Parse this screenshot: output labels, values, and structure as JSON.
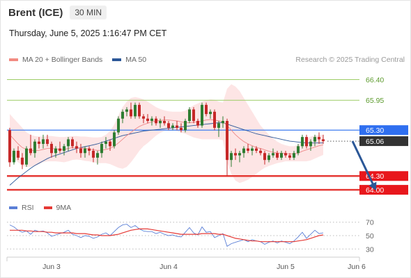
{
  "header": {
    "title": "Brent (ICE)",
    "timeframe": "30 MIN"
  },
  "datetime": "Thursday, June 5, 2025 1:16:47 PM CET",
  "legend": [
    {
      "label": "MA 20 + Bollinger Bands",
      "color": "#f28b82"
    },
    {
      "label": "MA 50",
      "color": "#2b5797"
    }
  ],
  "credit": "Research © 2025 Trading Central",
  "rsi_legend": [
    {
      "label": "RSI",
      "color": "#5b7fd6"
    },
    {
      "label": "9MA",
      "color": "#e53935"
    }
  ],
  "colors": {
    "up": "#2e7d32",
    "down": "#c62828",
    "resistance": "#9ccc65",
    "support": "#e53935",
    "pivot": "#3d7cf0",
    "current": "#333333"
  },
  "chart_data": [
    {
      "type": "candlestick",
      "ylim": [
        63.82,
        66.62
      ],
      "x_ticks": [
        {
          "label": "Jun 3",
          "index": 10
        },
        {
          "label": "Jun 4",
          "index": 38
        },
        {
          "label": "Jun 5",
          "index": 66
        },
        {
          "label": "Jun 6",
          "index": 83
        }
      ],
      "levels": [
        {
          "label": "66.40",
          "value": 66.4,
          "kind": "resistance"
        },
        {
          "label": "65.95",
          "value": 65.95,
          "kind": "resistance"
        },
        {
          "label": "65.30",
          "value": 65.3,
          "kind": "pivot"
        },
        {
          "label": "65.06",
          "value": 65.06,
          "kind": "current"
        },
        {
          "label": "64.30",
          "value": 64.3,
          "kind": "support"
        },
        {
          "label": "64.00",
          "value": 64.0,
          "kind": "support"
        }
      ],
      "forecast_arrow": {
        "from": [
          82,
          65.06
        ],
        "to": [
          88,
          64.1
        ]
      },
      "candles": [
        [
          65.3,
          65.35,
          64.5,
          64.6
        ],
        [
          64.6,
          64.9,
          64.55,
          64.85
        ],
        [
          64.85,
          64.95,
          64.65,
          64.7
        ],
        [
          64.7,
          64.8,
          64.45,
          64.55
        ],
        [
          64.55,
          64.95,
          64.5,
          64.9
        ],
        [
          64.9,
          65.2,
          64.75,
          64.8
        ],
        [
          64.8,
          65.1,
          64.7,
          65.05
        ],
        [
          65.05,
          65.15,
          64.9,
          65.0
        ],
        [
          65.0,
          65.2,
          64.9,
          65.1
        ],
        [
          65.1,
          65.2,
          64.95,
          65.0
        ],
        [
          65.0,
          65.05,
          64.7,
          64.8
        ],
        [
          64.8,
          64.95,
          64.7,
          64.9
        ],
        [
          64.9,
          65.05,
          64.8,
          64.85
        ],
        [
          64.85,
          65.0,
          64.75,
          64.95
        ],
        [
          64.95,
          65.15,
          64.85,
          65.1
        ],
        [
          65.1,
          65.15,
          64.9,
          64.95
        ],
        [
          64.95,
          65.05,
          64.8,
          64.9
        ],
        [
          64.9,
          65.0,
          64.7,
          64.8
        ],
        [
          64.8,
          64.95,
          64.7,
          64.9
        ],
        [
          64.9,
          64.95,
          64.75,
          64.85
        ],
        [
          64.85,
          64.9,
          64.6,
          64.7
        ],
        [
          64.7,
          64.85,
          64.55,
          64.8
        ],
        [
          64.8,
          65.05,
          64.7,
          65.0
        ],
        [
          65.0,
          65.15,
          64.9,
          65.05
        ],
        [
          65.05,
          65.1,
          64.85,
          64.95
        ],
        [
          64.95,
          65.3,
          64.9,
          65.25
        ],
        [
          65.25,
          65.6,
          65.2,
          65.55
        ],
        [
          65.55,
          65.75,
          65.45,
          65.7
        ],
        [
          65.7,
          65.8,
          65.6,
          65.75
        ],
        [
          65.75,
          65.9,
          65.55,
          65.6
        ],
        [
          65.6,
          65.9,
          65.55,
          65.85
        ],
        [
          65.85,
          65.9,
          65.55,
          65.6
        ],
        [
          65.6,
          65.65,
          65.45,
          65.55
        ],
        [
          65.55,
          65.65,
          65.45,
          65.5
        ],
        [
          65.5,
          65.6,
          65.4,
          65.55
        ],
        [
          65.55,
          65.6,
          65.4,
          65.45
        ],
        [
          65.45,
          65.55,
          65.35,
          65.5
        ],
        [
          65.5,
          65.6,
          65.4,
          65.45
        ],
        [
          65.45,
          65.5,
          65.3,
          65.35
        ],
        [
          65.35,
          65.45,
          65.3,
          65.4
        ],
        [
          65.4,
          65.5,
          65.3,
          65.35
        ],
        [
          65.35,
          65.45,
          65.25,
          65.3
        ],
        [
          65.3,
          65.55,
          65.25,
          65.5
        ],
        [
          65.5,
          65.8,
          65.45,
          65.75
        ],
        [
          65.75,
          65.8,
          65.45,
          65.5
        ],
        [
          65.5,
          65.55,
          65.35,
          65.4
        ],
        [
          65.4,
          65.9,
          65.35,
          65.85
        ],
        [
          65.85,
          65.9,
          65.6,
          65.65
        ],
        [
          65.65,
          65.75,
          65.55,
          65.7
        ],
        [
          65.7,
          65.75,
          65.3,
          65.35
        ],
        [
          65.35,
          65.5,
          65.15,
          65.45
        ],
        [
          65.45,
          65.6,
          65.35,
          65.5
        ],
        [
          65.5,
          65.55,
          64.3,
          64.65
        ],
        [
          64.65,
          64.85,
          64.5,
          64.8
        ],
        [
          64.8,
          64.9,
          64.65,
          64.75
        ],
        [
          64.75,
          64.85,
          64.6,
          64.8
        ],
        [
          64.8,
          64.95,
          64.7,
          64.9
        ],
        [
          64.9,
          65.0,
          64.8,
          64.85
        ],
        [
          64.85,
          64.95,
          64.75,
          64.9
        ],
        [
          64.9,
          64.95,
          64.8,
          64.85
        ],
        [
          64.85,
          64.9,
          64.75,
          64.8
        ],
        [
          64.8,
          64.85,
          64.55,
          64.65
        ],
        [
          64.65,
          64.8,
          64.6,
          64.75
        ],
        [
          64.75,
          64.9,
          64.7,
          64.8
        ],
        [
          64.8,
          64.85,
          64.65,
          64.7
        ],
        [
          64.7,
          64.85,
          64.65,
          64.8
        ],
        [
          64.8,
          64.85,
          64.7,
          64.75
        ],
        [
          64.75,
          64.8,
          64.65,
          64.7
        ],
        [
          64.7,
          64.85,
          64.65,
          64.8
        ],
        [
          64.8,
          65.0,
          64.75,
          64.95
        ],
        [
          64.95,
          65.2,
          64.9,
          65.15
        ],
        [
          65.15,
          65.2,
          64.9,
          64.95
        ],
        [
          64.95,
          65.1,
          64.85,
          65.05
        ],
        [
          65.05,
          65.2,
          64.95,
          65.15
        ],
        [
          65.15,
          65.25,
          65.0,
          65.1
        ],
        [
          65.1,
          65.2,
          65.0,
          65.06
        ]
      ],
      "ma20": [
        65.2,
        65.1,
        65.0,
        64.92,
        64.88,
        64.86,
        64.85,
        64.86,
        64.88,
        64.9,
        64.9,
        64.89,
        64.88,
        64.88,
        64.9,
        64.92,
        64.92,
        64.91,
        64.9,
        64.89,
        64.87,
        64.86,
        64.86,
        64.88,
        64.9,
        64.95,
        65.02,
        65.1,
        65.18,
        65.25,
        65.32,
        65.38,
        65.42,
        65.45,
        65.48,
        65.5,
        65.51,
        65.52,
        65.52,
        65.51,
        65.5,
        65.48,
        65.46,
        65.46,
        65.47,
        65.48,
        65.5,
        65.52,
        65.53,
        65.52,
        65.5,
        65.48,
        65.4,
        65.3,
        65.2,
        65.12,
        65.05,
        65.0,
        64.96,
        64.92,
        64.9,
        64.87,
        64.84,
        64.82,
        64.8,
        64.8,
        64.79,
        64.78,
        64.78,
        64.8,
        64.84,
        64.87,
        64.9,
        64.93,
        64.96,
        64.98
      ],
      "bb_upper": [
        65.65,
        65.55,
        65.45,
        65.35,
        65.25,
        65.2,
        65.17,
        65.16,
        65.16,
        65.17,
        65.17,
        65.16,
        65.15,
        65.15,
        65.16,
        65.17,
        65.17,
        65.16,
        65.16,
        65.15,
        65.14,
        65.14,
        65.15,
        65.2,
        65.28,
        65.42,
        65.62,
        65.8,
        65.92,
        66.0,
        66.02,
        66.0,
        65.97,
        65.92,
        65.86,
        65.8,
        65.76,
        65.73,
        65.71,
        65.7,
        65.7,
        65.7,
        65.72,
        65.78,
        65.84,
        65.88,
        65.92,
        65.95,
        65.97,
        65.96,
        65.92,
        65.9,
        66.2,
        66.3,
        66.25,
        66.15,
        66.0,
        65.85,
        65.7,
        65.55,
        65.4,
        65.3,
        65.2,
        65.12,
        65.05,
        65.0,
        64.97,
        64.95,
        64.95,
        64.98,
        65.06,
        65.12,
        65.16,
        65.18,
        65.2,
        65.2
      ],
      "bb_lower": [
        64.75,
        64.68,
        64.6,
        64.52,
        64.5,
        64.5,
        64.52,
        64.56,
        64.6,
        64.62,
        64.62,
        64.62,
        64.61,
        64.6,
        64.62,
        64.65,
        64.66,
        64.65,
        64.63,
        64.62,
        64.6,
        64.58,
        64.58,
        64.58,
        64.56,
        64.52,
        64.48,
        64.46,
        64.5,
        64.6,
        64.72,
        64.85,
        64.95,
        65.02,
        65.1,
        65.18,
        65.24,
        65.28,
        65.3,
        65.3,
        65.28,
        65.25,
        65.22,
        65.18,
        65.14,
        65.12,
        65.1,
        65.1,
        65.1,
        65.1,
        65.1,
        65.08,
        64.6,
        64.35,
        64.2,
        64.15,
        64.18,
        64.22,
        64.28,
        64.35,
        64.42,
        64.48,
        64.52,
        64.55,
        64.58,
        64.6,
        64.62,
        64.62,
        64.62,
        64.62,
        64.62,
        64.62,
        64.64,
        64.68,
        64.72,
        64.76
      ],
      "ma50": [
        64.1,
        64.18,
        64.26,
        64.33,
        64.4,
        64.47,
        64.53,
        64.58,
        64.63,
        64.68,
        64.72,
        64.75,
        64.78,
        64.81,
        64.84,
        64.87,
        64.9,
        64.92,
        64.94,
        64.96,
        64.98,
        65.0,
        65.03,
        65.06,
        65.09,
        65.12,
        65.15,
        65.18,
        65.2,
        65.22,
        65.24,
        65.26,
        65.28,
        65.29,
        65.3,
        65.31,
        65.32,
        65.33,
        65.34,
        65.35,
        65.36,
        65.37,
        65.38,
        65.39,
        65.4,
        65.41,
        65.42,
        65.43,
        65.44,
        65.45,
        65.46,
        65.46,
        65.43,
        65.4,
        65.37,
        65.34,
        65.31,
        65.28,
        65.25,
        65.22,
        65.2,
        65.18,
        65.16,
        65.14,
        65.12,
        65.1,
        65.08,
        65.06,
        65.05,
        65.04,
        65.03,
        65.02,
        65.02,
        65.02,
        65.02,
        65.02
      ]
    },
    {
      "type": "line",
      "ylim": [
        22,
        78
      ],
      "y_ticks": [
        {
          "label": "70",
          "value": 70
        },
        {
          "label": "50",
          "value": 50
        },
        {
          "label": "30",
          "value": 30
        }
      ],
      "series": [
        {
          "key": "rsi",
          "values": [
            66,
            63,
            58,
            55,
            57,
            52,
            58,
            56,
            57,
            54,
            49,
            51,
            53,
            55,
            58,
            52,
            50,
            47,
            50,
            49,
            46,
            48,
            52,
            54,
            50,
            56,
            62,
            66,
            67,
            62,
            65,
            60,
            57,
            56,
            56,
            53,
            55,
            52,
            50,
            51,
            49,
            48,
            55,
            62,
            54,
            51,
            63,
            55,
            56,
            47,
            50,
            53,
            34,
            38,
            40,
            42,
            44,
            41,
            44,
            42,
            41,
            37,
            40,
            42,
            39,
            42,
            40,
            38,
            42,
            48,
            55,
            46,
            52,
            58,
            53,
            54
          ]
        },
        {
          "key": "ma9",
          "values": [
            58,
            58,
            58,
            58,
            57,
            57,
            56,
            56,
            56,
            55,
            55,
            54,
            54,
            54,
            54,
            54,
            53,
            53,
            53,
            52,
            51,
            51,
            50,
            50,
            50,
            51,
            52,
            54,
            56,
            58,
            59,
            60,
            60,
            60,
            59,
            58,
            57,
            56,
            55,
            54,
            53,
            52,
            52,
            52,
            52,
            52,
            53,
            53,
            53,
            53,
            52,
            52,
            50,
            48,
            46,
            45,
            44,
            43,
            42,
            42,
            41,
            41,
            41,
            41,
            41,
            41,
            41,
            41,
            41,
            42,
            43,
            44,
            46,
            48,
            50,
            51
          ]
        }
      ]
    }
  ]
}
